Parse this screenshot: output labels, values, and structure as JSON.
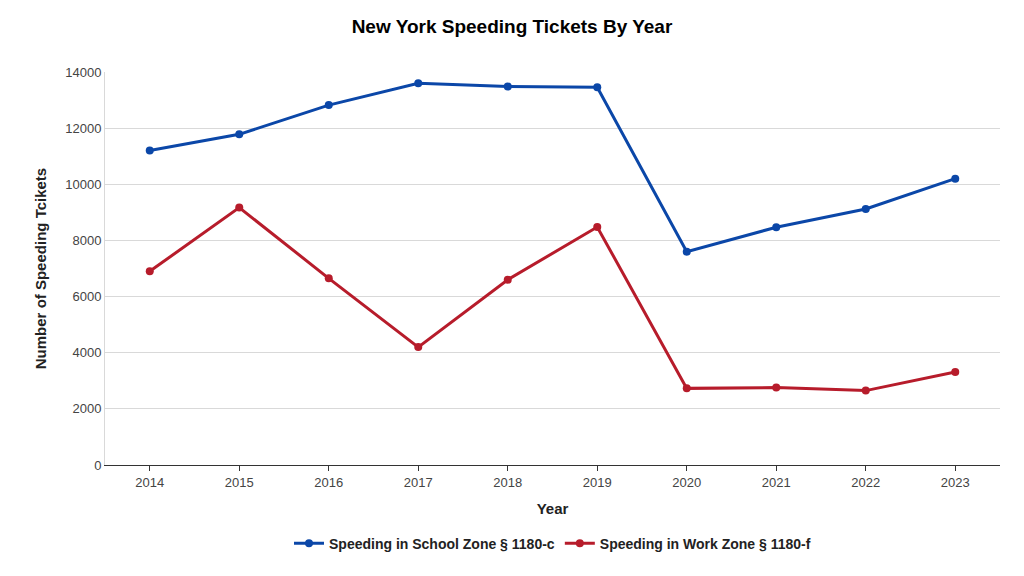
{
  "chart_data": {
    "type": "line",
    "title": "New York Speeding Tickets By Year",
    "x_label": "Year",
    "y_label": "Number of Speeding Tcikets",
    "categories": [
      "2014",
      "2015",
      "2016",
      "2017",
      "2018",
      "2019",
      "2020",
      "2021",
      "2022",
      "2023"
    ],
    "series": [
      {
        "name": "Speeding in School Zone § 1180-c",
        "color": "#0b47a8",
        "values": [
          11200,
          11780,
          12820,
          13600,
          13480,
          13460,
          7600,
          8470,
          9120,
          10200
        ]
      },
      {
        "name": "Speeding in Work Zone § 1180-f",
        "color": "#b71c2b",
        "values": [
          6900,
          9170,
          6650,
          4200,
          6600,
          8480,
          2730,
          2760,
          2650,
          3310
        ]
      }
    ],
    "ylim": [
      0,
      14000
    ],
    "yticks": [
      0,
      2000,
      4000,
      6000,
      8000,
      10000,
      12000,
      14000
    ],
    "grid": true,
    "legend": "bottom",
    "marker": "circle"
  }
}
